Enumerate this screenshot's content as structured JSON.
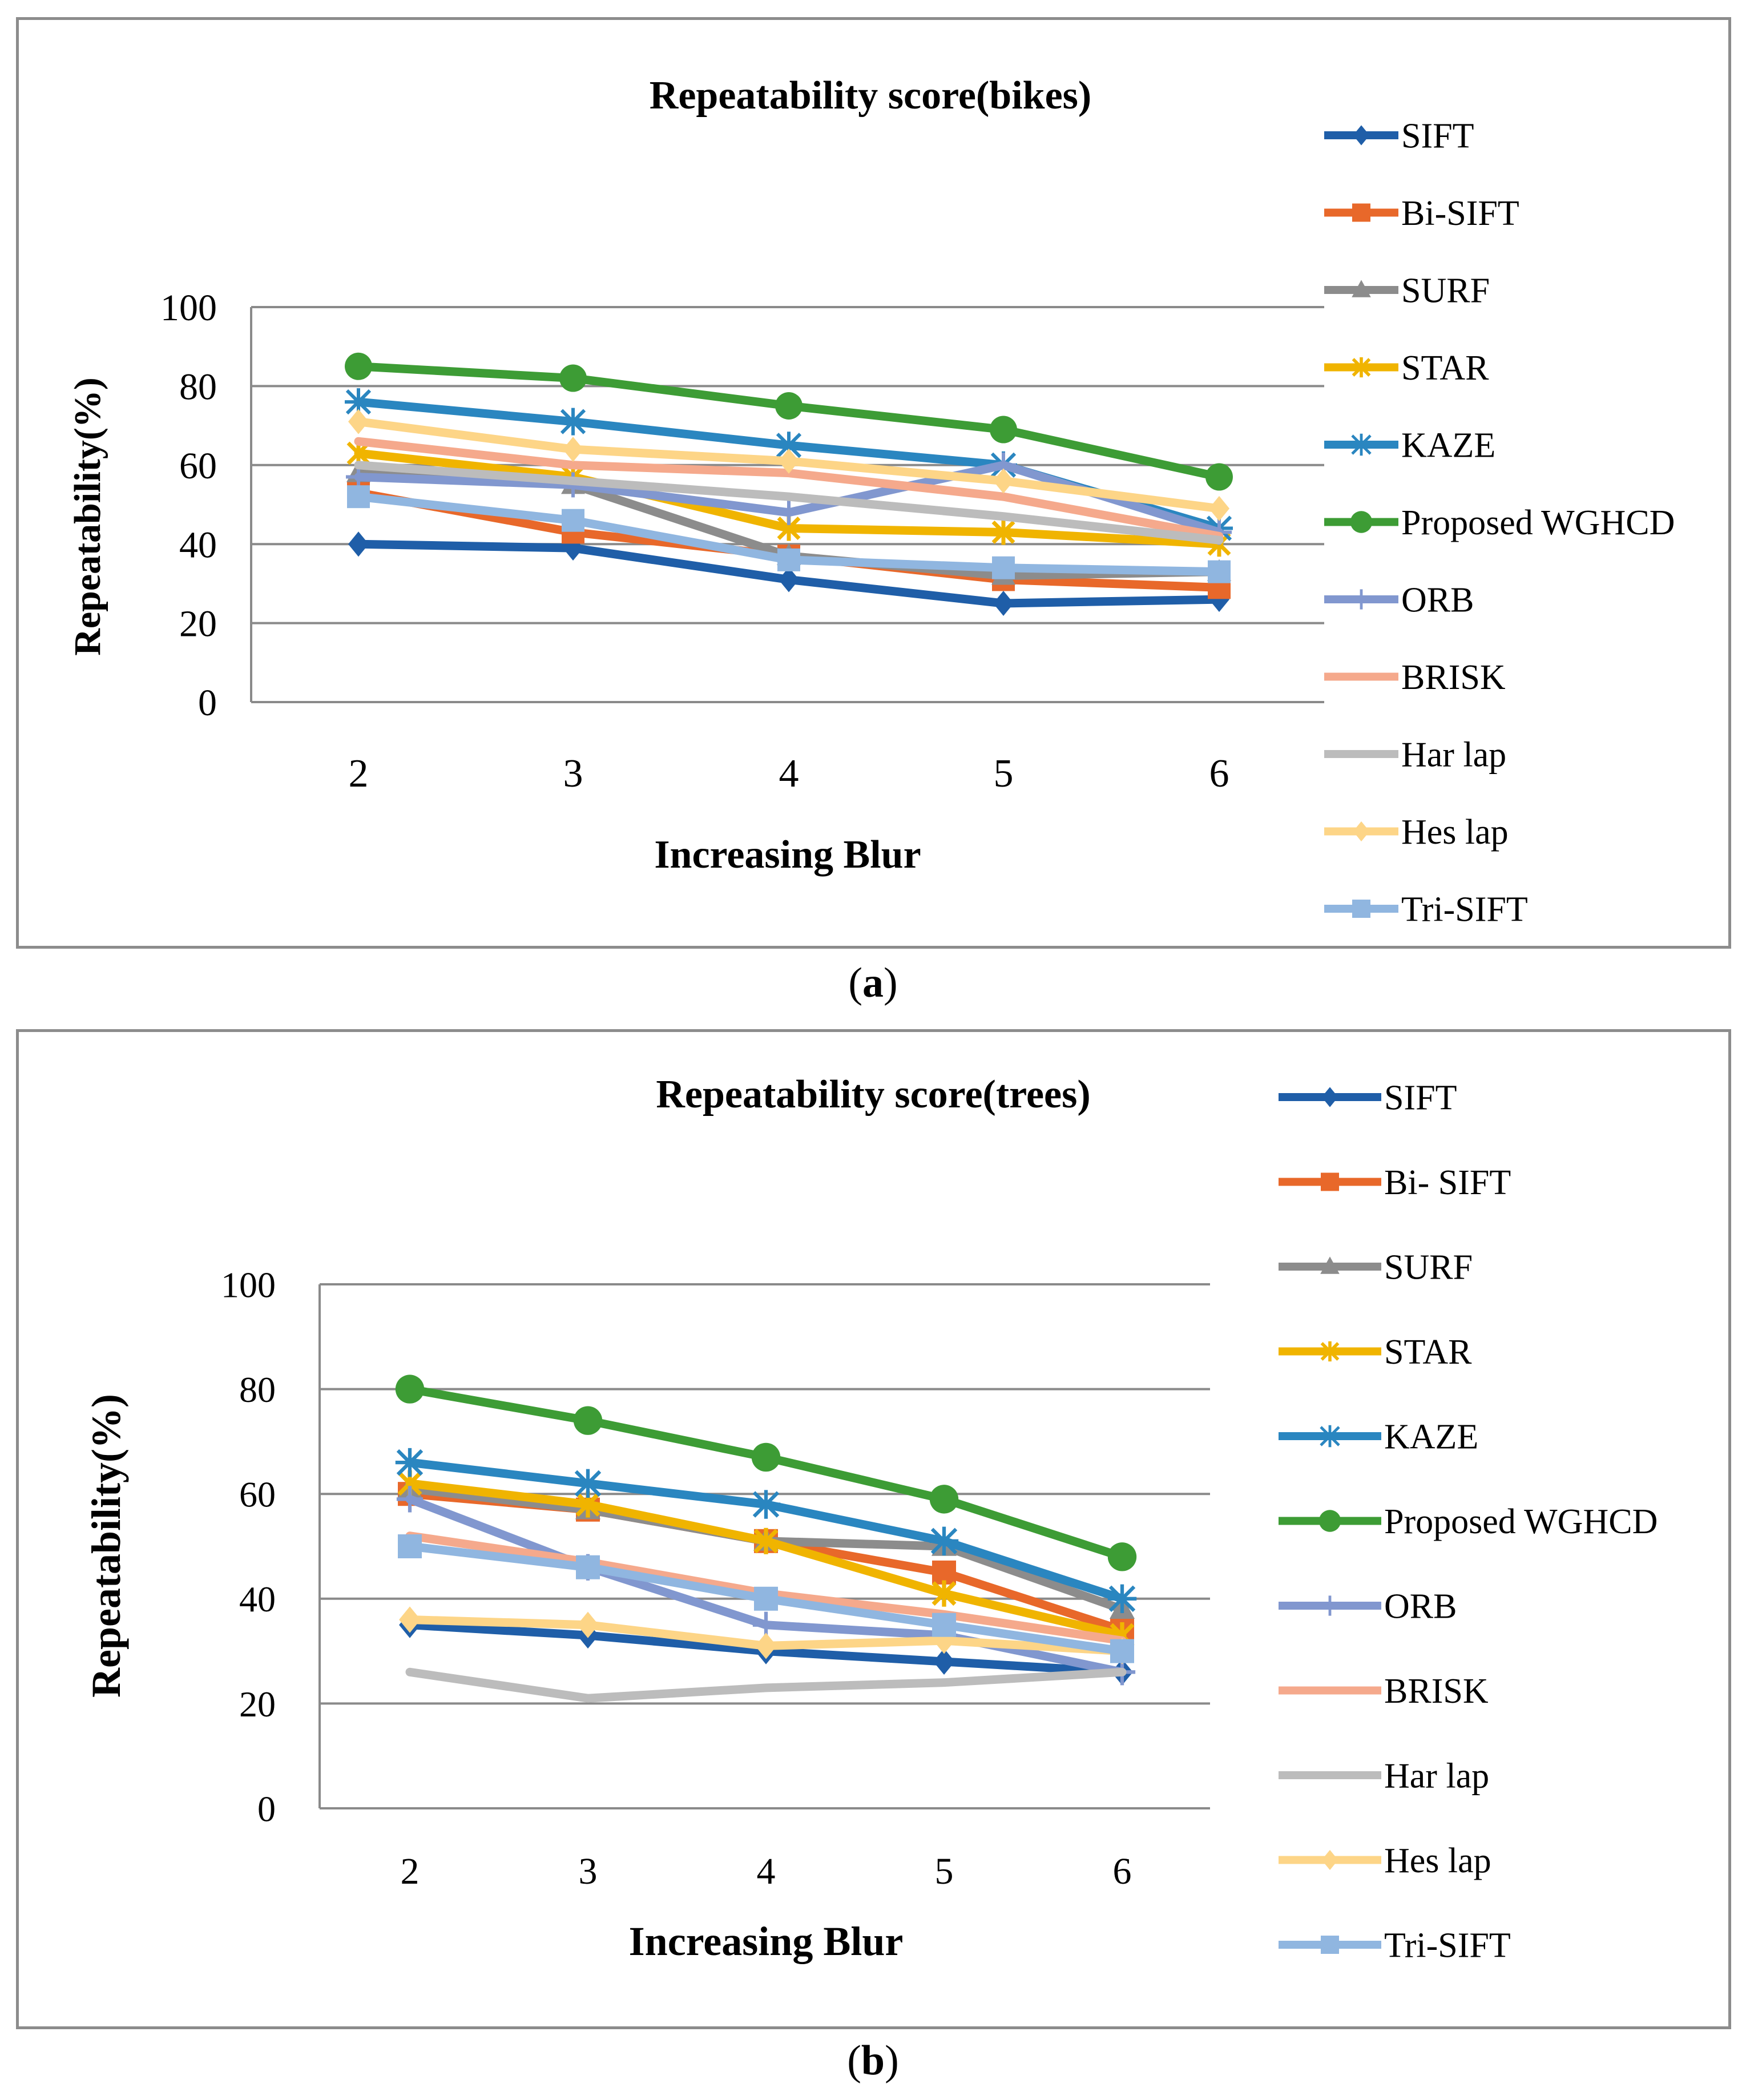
{
  "chart_data": [
    {
      "type": "line",
      "title": "Repeatability score(bikes)",
      "xlabel": "Increasing Blur",
      "ylabel": "Repeatability(%)",
      "ylim": [
        0,
        100
      ],
      "yticks": [
        0,
        20,
        40,
        60,
        80,
        100
      ],
      "categories": [
        "2",
        "3",
        "4",
        "5",
        "6"
      ],
      "legend_position": "right",
      "caption": "(a)",
      "series": [
        {
          "name": "SIFT",
          "color": "#1f5ea8",
          "marker": "diamond",
          "values": [
            40,
            39,
            31,
            25,
            26
          ]
        },
        {
          "name": "Bi-SIFT",
          "color": "#e8682a",
          "marker": "square",
          "values": [
            53,
            43,
            37,
            31,
            29
          ]
        },
        {
          "name": "SURF",
          "color": "#8c8c8c",
          "marker": "triangle",
          "values": [
            58,
            55,
            37,
            32,
            33
          ]
        },
        {
          "name": "STAR",
          "color": "#f0b400",
          "marker": "star",
          "values": [
            63,
            57,
            44,
            43,
            40
          ]
        },
        {
          "name": "KAZE",
          "color": "#2a86c0",
          "marker": "asterisk",
          "values": [
            76,
            71,
            65,
            60,
            44
          ]
        },
        {
          "name": "Proposed WGHCD",
          "color": "#3d9c35",
          "marker": "circle",
          "values": [
            85,
            82,
            75,
            69,
            57
          ]
        },
        {
          "name": "ORB",
          "color": "#8197cf",
          "marker": "plus",
          "values": [
            57,
            55,
            48,
            60,
            43
          ]
        },
        {
          "name": "BRISK",
          "color": "#f5a98c",
          "marker": "none",
          "values": [
            66,
            60,
            58,
            52,
            42
          ]
        },
        {
          "name": "Har lap",
          "color": "#bcbcbc",
          "marker": "none",
          "values": [
            60,
            56,
            52,
            47,
            41
          ]
        },
        {
          "name": "Hes lap",
          "color": "#fdd587",
          "marker": "diamond",
          "values": [
            71,
            64,
            61,
            56,
            49
          ]
        },
        {
          "name": "Tri-SIFT",
          "color": "#90b6e0",
          "marker": "square",
          "values": [
            52,
            46,
            36,
            34,
            33
          ]
        }
      ]
    },
    {
      "type": "line",
      "title": "Repeatability score(trees)",
      "xlabel": "Increasing Blur",
      "ylabel": "Repeatability(%)",
      "ylim": [
        0,
        100
      ],
      "yticks": [
        0,
        20,
        40,
        60,
        80,
        100
      ],
      "categories": [
        "2",
        "3",
        "4",
        "5",
        "6"
      ],
      "legend_position": "right",
      "caption": "(b)",
      "series": [
        {
          "name": "SIFT",
          "color": "#1f5ea8",
          "marker": "diamond",
          "values": [
            35,
            33,
            30,
            28,
            26
          ]
        },
        {
          "name": "Bi- SIFT",
          "color": "#e8682a",
          "marker": "square",
          "values": [
            60,
            57,
            51,
            45,
            34
          ]
        },
        {
          "name": "SURF",
          "color": "#8c8c8c",
          "marker": "triangle",
          "values": [
            61,
            57,
            51,
            50,
            38
          ]
        },
        {
          "name": "STAR",
          "color": "#f0b400",
          "marker": "star",
          "values": [
            62,
            58,
            51,
            41,
            33
          ]
        },
        {
          "name": "KAZE",
          "color": "#2a86c0",
          "marker": "asterisk",
          "values": [
            66,
            62,
            58,
            51,
            40
          ]
        },
        {
          "name": "Proposed WGHCD",
          "color": "#3d9c35",
          "marker": "circle",
          "values": [
            80,
            74,
            67,
            59,
            48
          ]
        },
        {
          "name": "ORB",
          "color": "#8197cf",
          "marker": "plus",
          "values": [
            59,
            46,
            35,
            33,
            26
          ]
        },
        {
          "name": "BRISK",
          "color": "#f5a98c",
          "marker": "none",
          "values": [
            52,
            47,
            41,
            37,
            32
          ]
        },
        {
          "name": "Har lap",
          "color": "#bcbcbc",
          "marker": "none",
          "values": [
            26,
            21,
            23,
            24,
            26
          ]
        },
        {
          "name": "Hes lap",
          "color": "#fdd587",
          "marker": "diamond",
          "values": [
            36,
            35,
            31,
            32,
            30
          ]
        },
        {
          "name": "Tri-SIFT",
          "color": "#90b6e0",
          "marker": "square",
          "values": [
            50,
            46,
            40,
            35,
            30
          ]
        }
      ]
    }
  ],
  "captions": {
    "a": {
      "open": "(",
      "letter": "a",
      "close": ")"
    },
    "b": {
      "open": "(",
      "letter": "b",
      "close": ")"
    }
  }
}
